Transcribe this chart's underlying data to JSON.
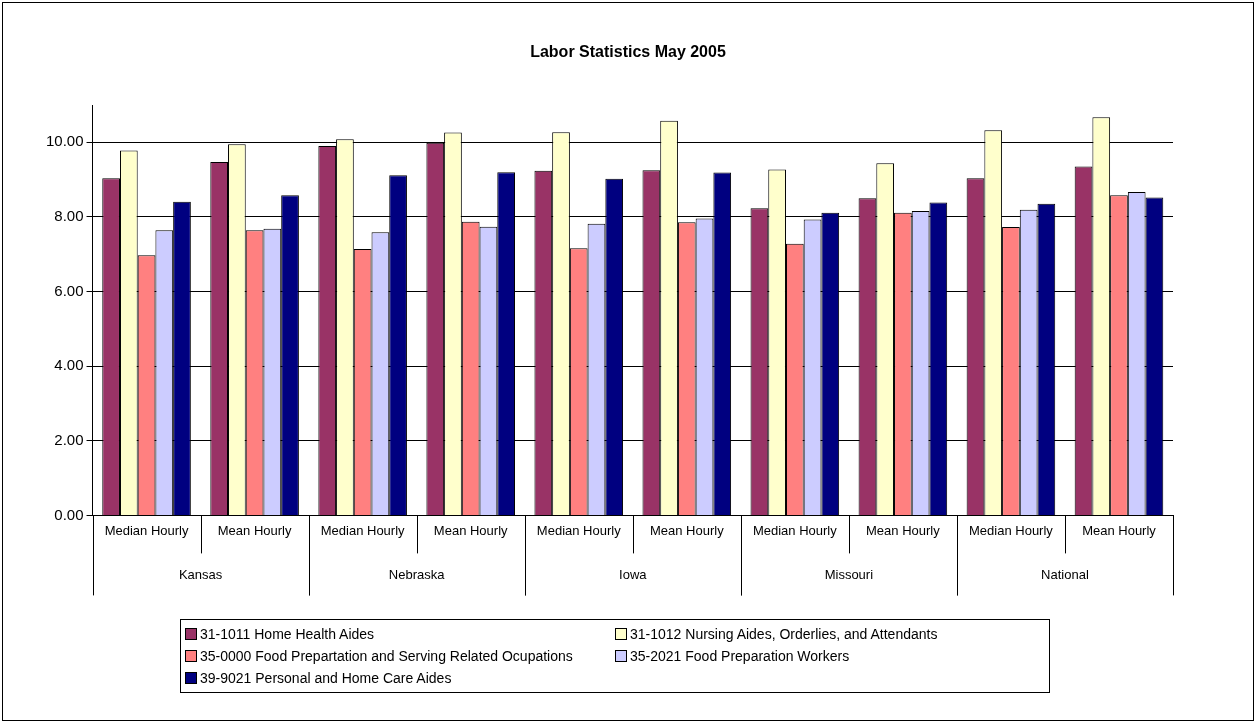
{
  "chart_data": {
    "type": "bar",
    "title": "Labor Statistics May 2005",
    "categories": [
      "Median Hourly",
      "Mean Hourly",
      "Median Hourly",
      "Mean Hourly",
      "Median Hourly",
      "Mean Hourly",
      "Median Hourly",
      "Mean Hourly",
      "Median Hourly",
      "Mean Hourly"
    ],
    "annotations": [
      "Kansas",
      "Nebraska",
      "Iowa",
      "Missouri",
      "National"
    ],
    "series": [
      {
        "name": "31-1011 Home Health Aides",
        "color": "#993366",
        "values": [
          9.04,
          9.47,
          9.9,
          9.99,
          9.24,
          9.25,
          8.23,
          8.5,
          9.04,
          9.35
        ]
      },
      {
        "name": "31-1012 Nursing Aides, Orderlies, and Attendants",
        "color": "#ffffcc",
        "values": [
          9.78,
          9.95,
          10.08,
          10.26,
          10.27,
          10.58,
          9.27,
          9.44,
          10.32,
          10.67
        ]
      },
      {
        "name": "35-0000 Food Prepartation and Serving Related Ocupations",
        "color": "#ff8080",
        "values": [
          6.97,
          7.64,
          7.14,
          7.87,
          7.16,
          7.86,
          7.28,
          8.11,
          7.73,
          8.58
        ]
      },
      {
        "name": "35-2021 Food Preparation Workers",
        "color": "#ccccff",
        "values": [
          7.64,
          7.68,
          7.59,
          7.74,
          7.82,
          7.96,
          7.93,
          8.16,
          8.19,
          8.67
        ]
      },
      {
        "name": "39-9021 Personal and Home Care Aides",
        "color": "#000080",
        "values": [
          8.41,
          8.58,
          9.12,
          9.2,
          9.02,
          9.19,
          8.11,
          8.39,
          8.35,
          8.52
        ]
      }
    ],
    "ylim": [
      0,
      11
    ],
    "yticks": [
      {
        "value": 0,
        "label": "0.00"
      },
      {
        "value": 2,
        "label": "2.00"
      },
      {
        "value": 4,
        "label": "4.00"
      },
      {
        "value": 6,
        "label": "6.00"
      },
      {
        "value": 8,
        "label": "8.00"
      },
      {
        "value": 10,
        "label": "10.00"
      }
    ],
    "grid": "y",
    "legend": "bottom"
  }
}
